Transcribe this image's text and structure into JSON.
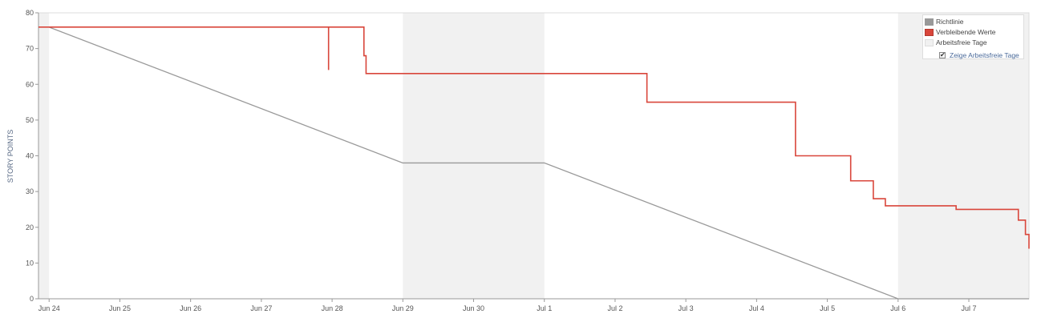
{
  "chart_data": {
    "type": "line",
    "title": "",
    "xlabel": "",
    "ylabel": "STORY POINTS",
    "ylim": [
      0,
      80
    ],
    "y_ticks": [
      "0",
      "10",
      "20",
      "30",
      "40",
      "50",
      "60",
      "70",
      "80"
    ],
    "x_ticks": [
      "Jun 24",
      "Jun 25",
      "Jun 26",
      "Jun 27",
      "Jun 28",
      "Jun 29",
      "Jun 30",
      "Jul 1",
      "Jul 2",
      "Jul 3",
      "Jul 4",
      "Jul 5",
      "Jul 6",
      "Jul 7"
    ],
    "x_range_days": [
      -0.15,
      13.85
    ],
    "non_working_periods": [
      {
        "start": -0.15,
        "end": 0.0
      },
      {
        "start": 5.0,
        "end": 7.0
      },
      {
        "start": 12.0,
        "end": 13.85
      }
    ],
    "series": [
      {
        "name": "Richtlinie",
        "color": "#999999",
        "points": [
          {
            "x": -0.15,
            "y": 76
          },
          {
            "x": 0.0,
            "y": 76
          },
          {
            "x": 5.0,
            "y": 38
          },
          {
            "x": 7.0,
            "y": 38
          },
          {
            "x": 12.0,
            "y": 0
          },
          {
            "x": 13.85,
            "y": 0
          }
        ]
      },
      {
        "name": "Verbleibende Werte",
        "color": "#d9463b",
        "points": [
          {
            "x": -0.15,
            "y": 76
          },
          {
            "x": 3.95,
            "y": 76
          },
          {
            "x": 3.95,
            "y": 64
          },
          {
            "x": 3.95,
            "y": 76
          },
          {
            "x": 4.45,
            "y": 76
          },
          {
            "x": 4.45,
            "y": 68
          },
          {
            "x": 4.48,
            "y": 68
          },
          {
            "x": 4.48,
            "y": 63
          },
          {
            "x": 8.45,
            "y": 63
          },
          {
            "x": 8.45,
            "y": 55
          },
          {
            "x": 10.55,
            "y": 55
          },
          {
            "x": 10.55,
            "y": 40
          },
          {
            "x": 11.33,
            "y": 40
          },
          {
            "x": 11.33,
            "y": 33
          },
          {
            "x": 11.65,
            "y": 33
          },
          {
            "x": 11.65,
            "y": 28
          },
          {
            "x": 11.82,
            "y": 28
          },
          {
            "x": 11.82,
            "y": 26
          },
          {
            "x": 12.82,
            "y": 26
          },
          {
            "x": 12.82,
            "y": 25
          },
          {
            "x": 13.7,
            "y": 25
          },
          {
            "x": 13.7,
            "y": 22
          },
          {
            "x": 13.8,
            "y": 22
          },
          {
            "x": 13.8,
            "y": 18
          },
          {
            "x": 13.85,
            "y": 18
          },
          {
            "x": 13.85,
            "y": 14
          }
        ]
      }
    ],
    "non_working_color": "#f1f1f1",
    "grid": false,
    "legend": {
      "placement": "top-right",
      "entries": [
        {
          "label": "Richtlinie",
          "color": "#999999"
        },
        {
          "label": "Verbleibende Werte",
          "color": "#d9463b"
        },
        {
          "label": "Arbeitsfreie Tage",
          "color": "#f1f1f1"
        }
      ],
      "toggle_label": "Zeige Arbeitsfreie Tage",
      "toggle_checked": true
    }
  }
}
